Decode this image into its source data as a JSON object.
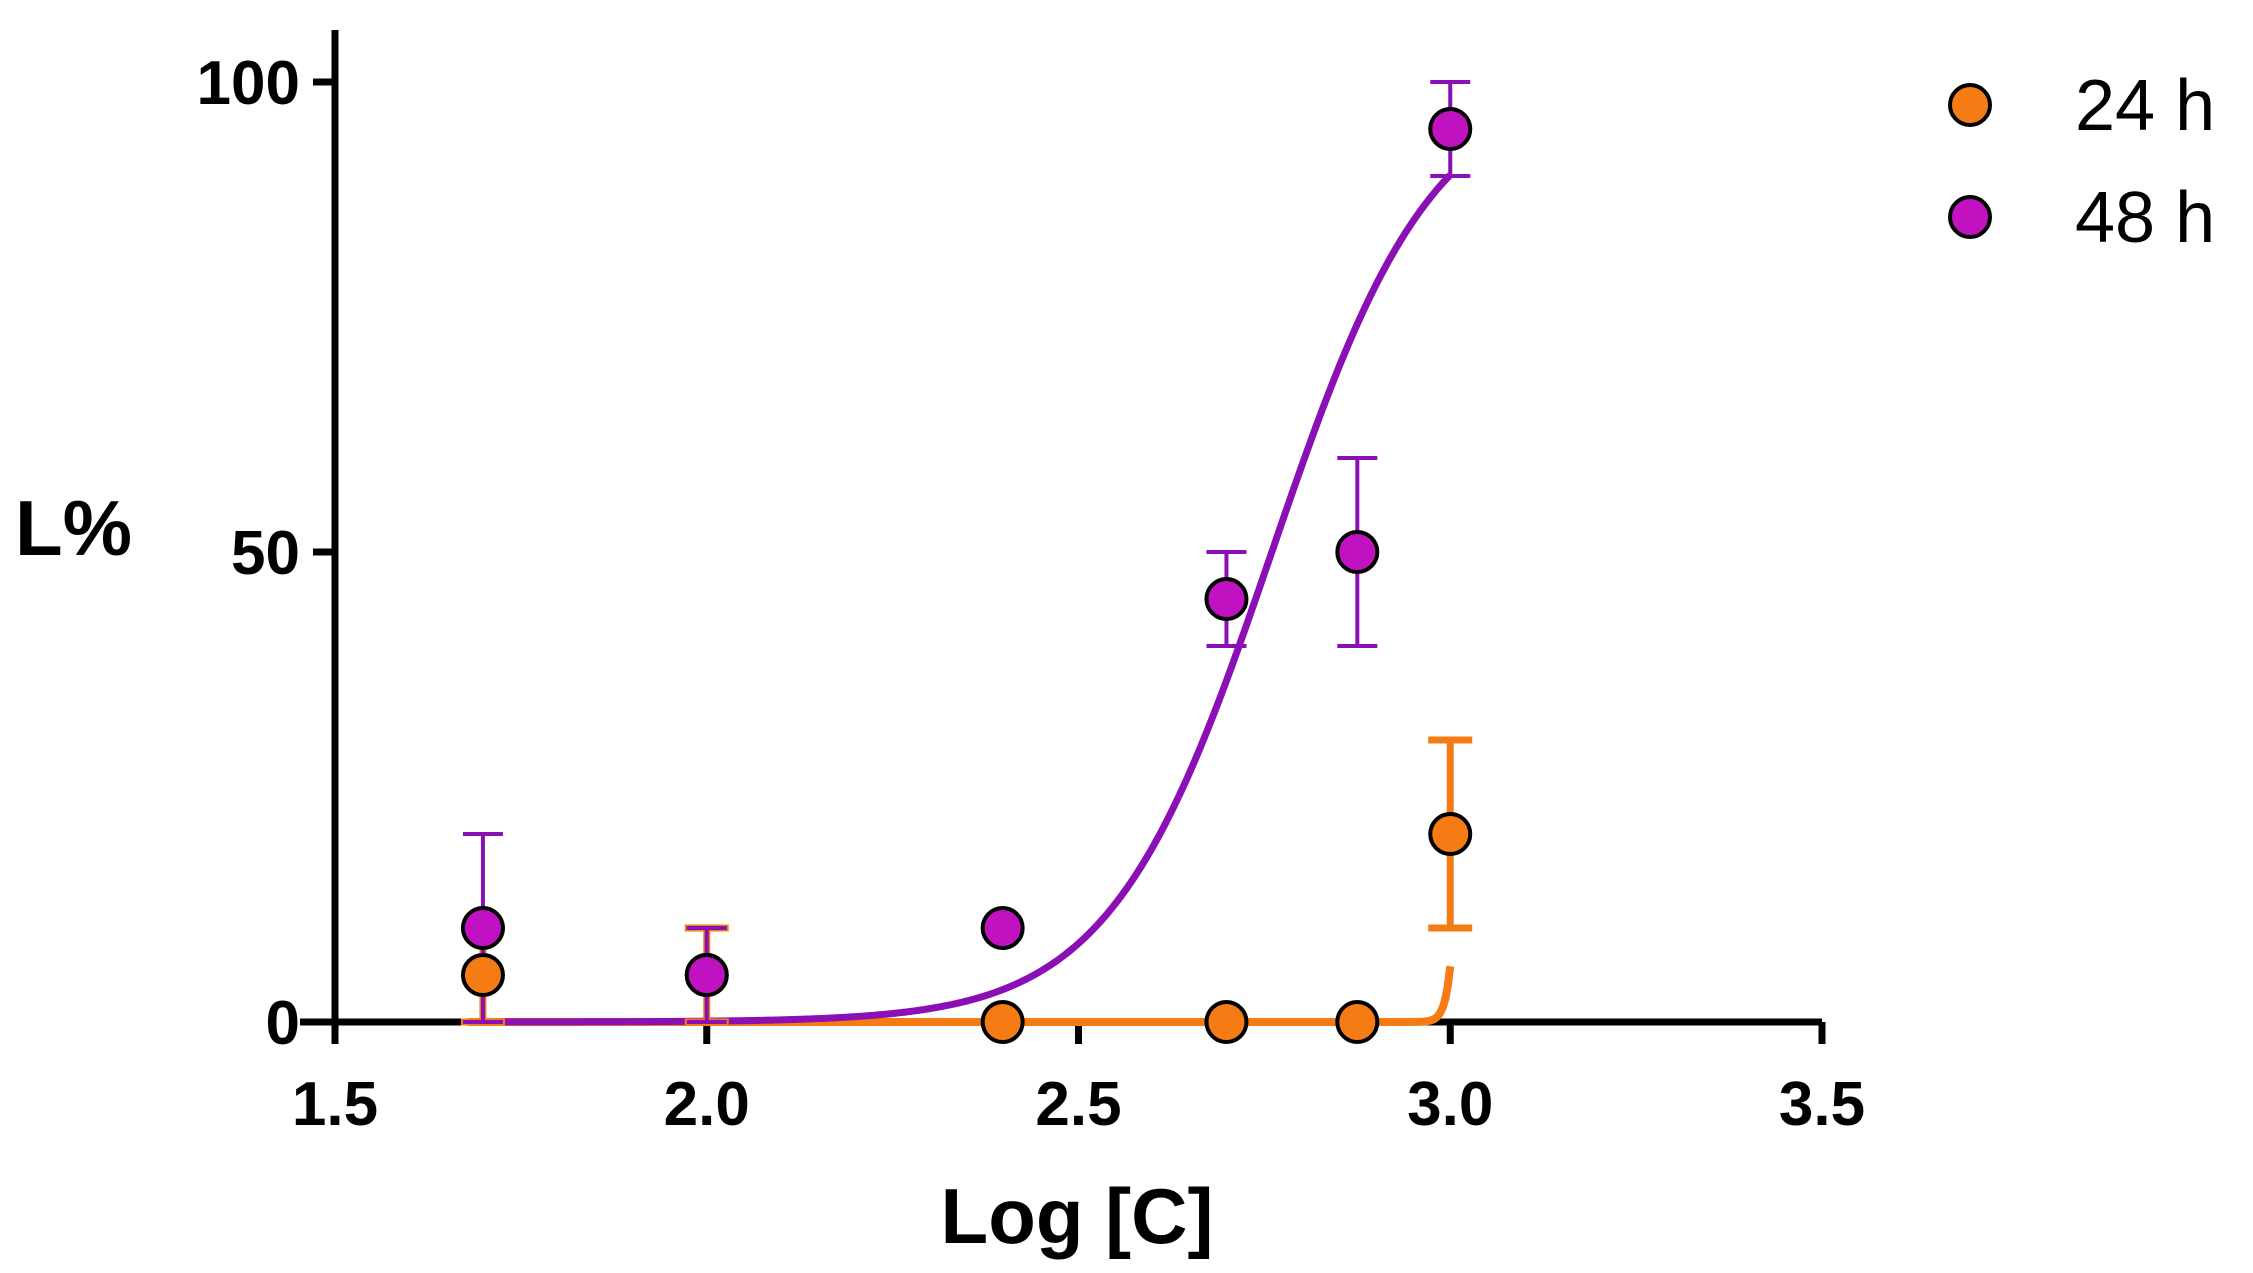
{
  "chart_data": {
    "type": "scatter",
    "title": "",
    "xlabel": "Log [C]",
    "ylabel": "L%",
    "xlim": [
      1.5,
      3.5
    ],
    "ylim": [
      0,
      100
    ],
    "x_ticks": [
      "1.5",
      "2.0",
      "2.5",
      "3.0",
      "3.5"
    ],
    "y_ticks": [
      "0",
      "50",
      "100"
    ],
    "legend_position": "top-right",
    "grid": false,
    "series": [
      {
        "name": "24 h",
        "marker_color": "#f57c14",
        "line_color": "#f57c14",
        "x": [
          1.699,
          2.0,
          2.398,
          2.699,
          2.875,
          3.0
        ],
        "y": [
          5,
          5,
          0,
          0,
          0,
          20
        ],
        "error": [
          5,
          5,
          0,
          0,
          0,
          10
        ],
        "fit": "steep sigmoid near x = 3.0",
        "fit_ec50": 3.02,
        "fit_hill": 60
      },
      {
        "name": "48 h",
        "marker_color": "#c012c0",
        "line_color": "#8a0fb5",
        "x": [
          1.699,
          2.0,
          2.398,
          2.699,
          2.875,
          3.0
        ],
        "y": [
          10,
          5,
          10,
          45,
          50,
          95
        ],
        "error": [
          10,
          5,
          0,
          5,
          10,
          5
        ],
        "fit": "sigmoid",
        "fit_ec50": 2.76,
        "fit_hill": 4
      }
    ]
  }
}
